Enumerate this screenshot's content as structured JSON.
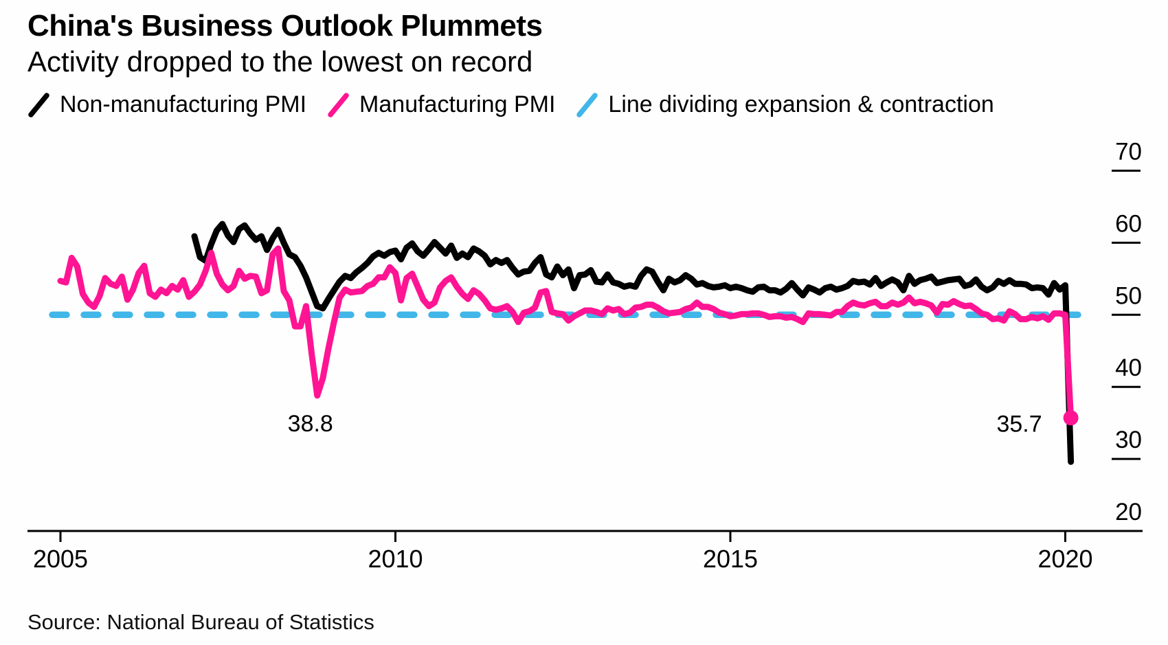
{
  "header": {
    "title": "China's Business Outlook Plummets",
    "subtitle": "Activity dropped to the lowest on record"
  },
  "legend": {
    "items": [
      {
        "label": "Non-manufacturing PMI",
        "color": "#000000"
      },
      {
        "label": "Manufacturing PMI",
        "color": "#ff1493"
      },
      {
        "label": "Line dividing expansion & contraction",
        "color": "#41b6e8"
      }
    ]
  },
  "chart_data": {
    "type": "line",
    "title": "China's Business Outlook Plummets",
    "subtitle": "Activity dropped to the lowest on record",
    "source": "Source: National Bureau of Statistics",
    "x_axis": {
      "tick_years": [
        2005,
        2010,
        2015,
        2020
      ],
      "range": [
        2005,
        2020.17
      ]
    },
    "y_axis": {
      "tick_values": [
        20,
        30,
        40,
        50,
        60,
        70
      ],
      "range": [
        20,
        74
      ],
      "side": "right"
    },
    "grid": false,
    "legend_position": "top",
    "threshold": {
      "value": 50,
      "label": "Line dividing expansion & contraction",
      "color": "#41b6e8",
      "style": "dashed"
    },
    "series": [
      {
        "name": "Non-manufacturing PMI",
        "color": "#000000",
        "start_year": 2007,
        "start_month": 1,
        "frequency": "monthly",
        "values": [
          60.9,
          58.0,
          57.5,
          59.8,
          61.7,
          62.6,
          61.0,
          60.1,
          61.9,
          62.4,
          61.3,
          60.4,
          60.9,
          59.0,
          60.6,
          61.8,
          60.0,
          58.4,
          58.0,
          56.8,
          55.2,
          53.2,
          51.2,
          50.9,
          52.2,
          53.4,
          54.6,
          55.4,
          55.1,
          55.9,
          56.5,
          57.2,
          58.1,
          58.6,
          58.2,
          58.7,
          58.9,
          57.7,
          59.3,
          59.9,
          58.8,
          58.2,
          59.1,
          60.1,
          59.3,
          58.5,
          59.6,
          57.9,
          58.5,
          58.0,
          59.2,
          58.8,
          58.2,
          57.0,
          57.6,
          57.2,
          57.6,
          56.5,
          55.6,
          56.0,
          56.1,
          57.2,
          58.0,
          55.6,
          55.2,
          56.7,
          55.5,
          56.3,
          53.7,
          55.5,
          55.6,
          56.2,
          54.6,
          54.5,
          55.6,
          54.5,
          54.3,
          53.9,
          54.1,
          53.9,
          55.4,
          56.3,
          56.0,
          54.6,
          53.4,
          55.0,
          54.5,
          54.8,
          55.5,
          55.0,
          54.2,
          54.4,
          54.0,
          53.8,
          53.9,
          54.1,
          53.7,
          53.9,
          53.7,
          53.4,
          53.2,
          53.8,
          53.9,
          53.4,
          53.4,
          53.1,
          53.6,
          54.4,
          53.5,
          52.7,
          53.8,
          53.5,
          53.1,
          53.7,
          53.9,
          53.5,
          53.7,
          54.0,
          54.7,
          54.5,
          54.6,
          54.2,
          55.1,
          54.0,
          54.5,
          54.9,
          54.5,
          53.4,
          55.4,
          54.3,
          54.8,
          55.0,
          55.3,
          54.4,
          54.6,
          54.8,
          54.9,
          55.0,
          54.0,
          54.2,
          54.9,
          53.9,
          53.4,
          53.8,
          54.7,
          54.3,
          54.8,
          54.3,
          54.3,
          54.2,
          53.7,
          53.8,
          53.7,
          52.8,
          54.4,
          53.5,
          54.1,
          29.6
        ]
      },
      {
        "name": "Manufacturing PMI",
        "color": "#ff1493",
        "start_year": 2005,
        "start_month": 1,
        "frequency": "monthly",
        "end_dot": true,
        "values": [
          54.7,
          54.5,
          57.9,
          56.7,
          52.9,
          51.7,
          51.1,
          52.6,
          55.1,
          54.3,
          54.0,
          55.3,
          52.1,
          53.5,
          55.8,
          56.8,
          53.0,
          52.5,
          53.5,
          53.0,
          54.0,
          53.5,
          54.8,
          52.5,
          53.2,
          54.2,
          56.1,
          58.6,
          55.7,
          54.2,
          53.4,
          54.0,
          56.1,
          55.0,
          55.4,
          55.3,
          53.0,
          53.4,
          58.4,
          59.2,
          53.3,
          52.0,
          48.4,
          48.4,
          51.2,
          44.6,
          38.8,
          41.2,
          45.3,
          49.0,
          52.4,
          53.5,
          53.1,
          53.2,
          53.3,
          54.0,
          54.3,
          55.2,
          55.2,
          56.6,
          55.8,
          52.0,
          55.1,
          55.7,
          53.9,
          52.1,
          51.2,
          51.7,
          53.8,
          54.7,
          55.2,
          53.9,
          52.9,
          52.2,
          53.4,
          52.9,
          52.0,
          50.9,
          50.7,
          50.9,
          51.2,
          50.4,
          49.0,
          50.3,
          50.5,
          51.0,
          53.1,
          53.3,
          50.4,
          50.2,
          50.1,
          49.2,
          49.8,
          50.2,
          50.6,
          50.6,
          50.4,
          50.1,
          50.9,
          50.6,
          50.8,
          50.1,
          50.3,
          51.0,
          51.1,
          51.4,
          51.4,
          51.0,
          50.5,
          50.2,
          50.3,
          50.4,
          50.8,
          51.0,
          51.7,
          51.1,
          51.1,
          50.8,
          50.3,
          50.1,
          49.8,
          49.9,
          50.1,
          50.1,
          50.2,
          50.2,
          50.0,
          49.7,
          49.8,
          49.8,
          49.6,
          49.7,
          49.4,
          49.0,
          50.2,
          50.1,
          50.1,
          50.0,
          49.9,
          50.4,
          50.4,
          51.2,
          51.7,
          51.4,
          51.3,
          51.6,
          51.8,
          51.2,
          51.2,
          51.7,
          51.4,
          51.7,
          52.4,
          51.6,
          51.8,
          51.6,
          51.3,
          50.3,
          51.5,
          51.4,
          51.9,
          51.5,
          51.2,
          51.3,
          50.8,
          50.2,
          50.0,
          49.4,
          49.5,
          49.2,
          50.5,
          50.1,
          49.4,
          49.4,
          49.7,
          49.5,
          49.8,
          49.3,
          50.2,
          50.2,
          50.0,
          35.7
        ]
      }
    ],
    "annotations": [
      {
        "text": "38.8",
        "series": "Manufacturing PMI",
        "year": 2008,
        "month": 11,
        "value": 38.8,
        "placement": "below"
      },
      {
        "text": "35.7",
        "series": "Manufacturing PMI",
        "year": 2020,
        "month": 2,
        "value": 35.7,
        "placement": "left"
      }
    ]
  }
}
